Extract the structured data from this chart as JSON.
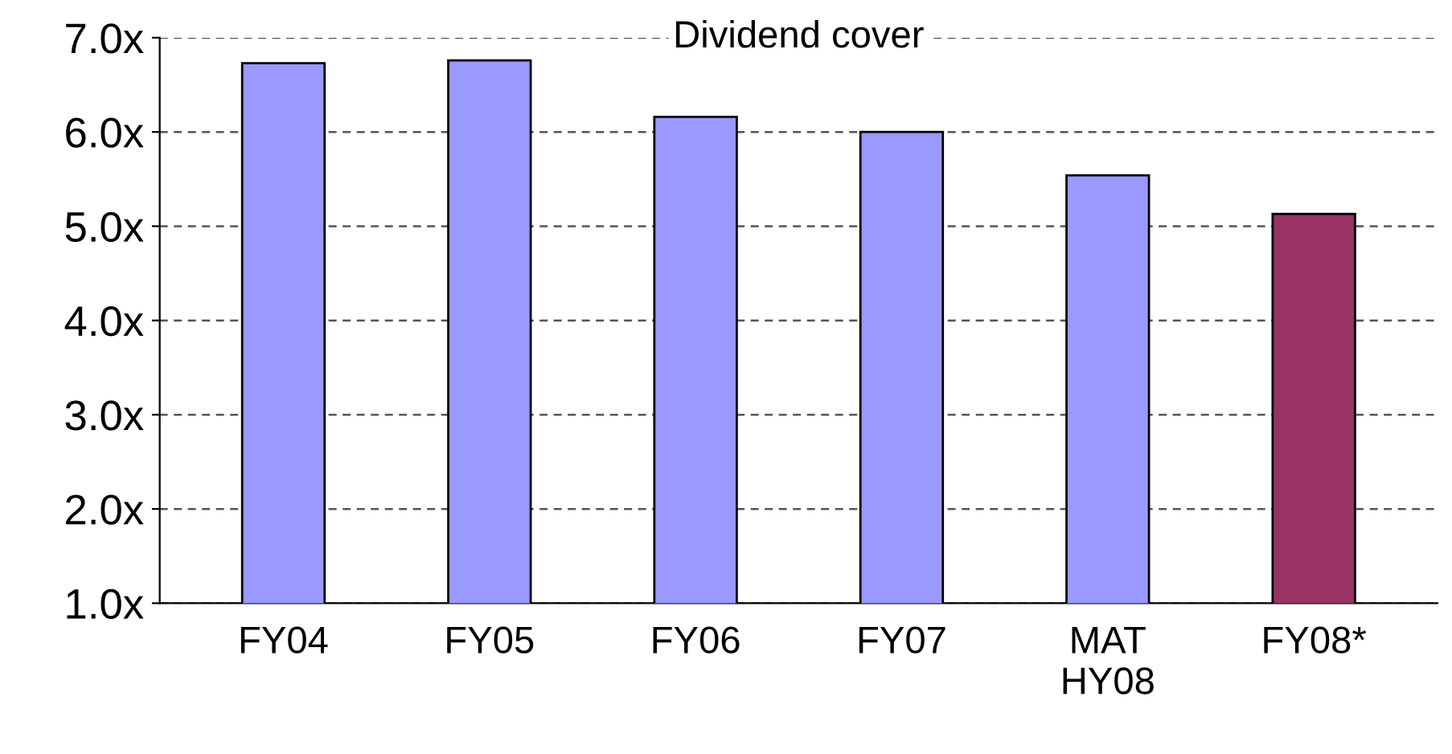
{
  "chart_data": {
    "type": "bar",
    "title": "Dividend cover",
    "categories": [
      "FY04",
      "FY05",
      "FY06",
      "FY07",
      "MAT\nHY08",
      "FY08*"
    ],
    "values": [
      6.73,
      6.76,
      6.16,
      6.0,
      5.54,
      5.13
    ],
    "colors": [
      "#9999ff",
      "#9999ff",
      "#9999ff",
      "#9999ff",
      "#9999ff",
      "#993366"
    ],
    "ylim": [
      1,
      7
    ],
    "yticks": [
      {
        "value": 1,
        "label": "1.0x"
      },
      {
        "value": 2,
        "label": "2.0x"
      },
      {
        "value": 3,
        "label": "3.0x"
      },
      {
        "value": 4,
        "label": "4.0x"
      },
      {
        "value": 5,
        "label": "5.0x"
      },
      {
        "value": 6,
        "label": "6.0x"
      },
      {
        "value": 7,
        "label": "7.0x"
      }
    ],
    "grid": "y",
    "line_style": "dashed",
    "legend": false
  }
}
